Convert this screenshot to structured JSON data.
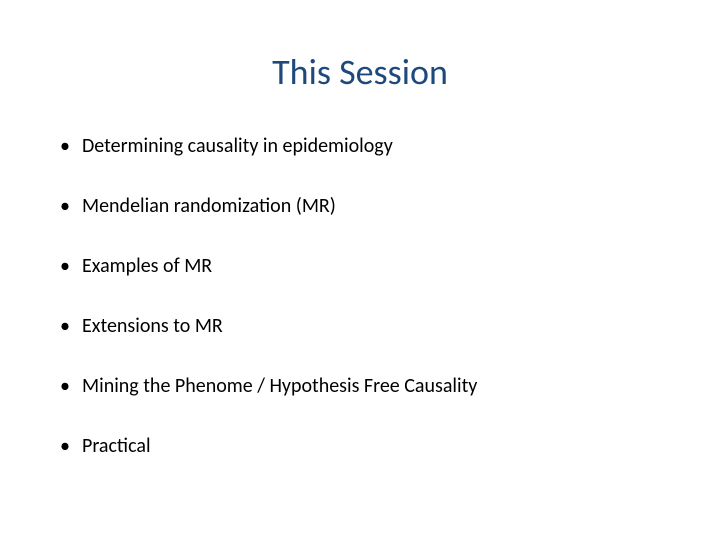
{
  "slide": {
    "title": "This Session",
    "title_color": "#1f497d",
    "title_fontsize": 36,
    "title_fontweight": "400",
    "bullet_color": "#000000",
    "bullet_fontsize": 20,
    "bullet_fontweight": "400",
    "background_color": "#ffffff",
    "items": [
      "Determining causality in epidemiology",
      "Mendelian randomization (MR)",
      "Examples of MR",
      "Extensions to MR",
      "Mining the Phenome / Hypothesis Free Causality",
      "Practical"
    ]
  }
}
